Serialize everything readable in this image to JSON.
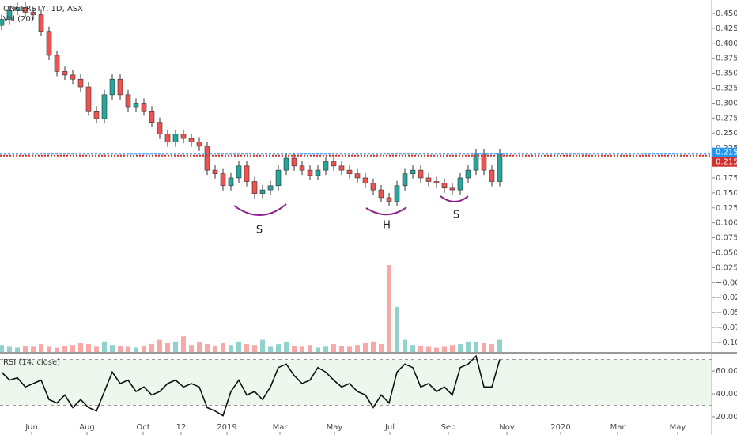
{
  "chart_data": [
    {
      "type": "candlestick",
      "title": "ONCERSTY, 1D, ASX",
      "volume_title": "Vol (20)",
      "up_color": "#26a69a",
      "down_color": "#ef5350",
      "open": [
        0.43,
        0.44,
        0.455,
        0.46,
        0.452,
        0.448,
        0.42,
        0.38,
        0.353,
        0.347,
        0.34,
        0.327,
        0.287,
        0.274,
        0.314,
        0.34,
        0.314,
        0.294,
        0.3,
        0.287,
        0.268,
        0.248,
        0.235,
        0.248,
        0.241,
        0.235,
        0.228,
        0.188,
        0.182,
        0.162,
        0.175,
        0.195,
        0.169,
        0.149,
        0.155,
        0.162,
        0.188,
        0.208,
        0.195,
        0.188,
        0.179,
        0.188,
        0.202,
        0.195,
        0.188,
        0.182,
        0.175,
        0.166,
        0.155,
        0.142,
        0.136,
        0.162,
        0.182,
        0.188,
        0.175,
        0.169,
        0.166,
        0.158,
        0.155,
        0.175,
        0.188,
        0.215,
        0.188,
        0.169
      ],
      "high": [
        0.448,
        0.463,
        0.468,
        0.468,
        0.46,
        0.456,
        0.428,
        0.388,
        0.361,
        0.355,
        0.348,
        0.335,
        0.295,
        0.322,
        0.348,
        0.348,
        0.322,
        0.308,
        0.308,
        0.295,
        0.276,
        0.256,
        0.256,
        0.256,
        0.249,
        0.243,
        0.236,
        0.196,
        0.19,
        0.183,
        0.203,
        0.203,
        0.177,
        0.163,
        0.17,
        0.196,
        0.216,
        0.216,
        0.203,
        0.196,
        0.196,
        0.21,
        0.21,
        0.203,
        0.196,
        0.19,
        0.183,
        0.174,
        0.163,
        0.15,
        0.17,
        0.19,
        0.196,
        0.196,
        0.183,
        0.177,
        0.174,
        0.166,
        0.183,
        0.196,
        0.223,
        0.223,
        0.196,
        0.223
      ],
      "low": [
        0.422,
        0.432,
        0.447,
        0.444,
        0.44,
        0.412,
        0.372,
        0.345,
        0.339,
        0.332,
        0.319,
        0.279,
        0.266,
        0.266,
        0.306,
        0.306,
        0.286,
        0.286,
        0.279,
        0.26,
        0.24,
        0.227,
        0.227,
        0.233,
        0.227,
        0.22,
        0.18,
        0.174,
        0.154,
        0.154,
        0.167,
        0.161,
        0.141,
        0.141,
        0.147,
        0.154,
        0.18,
        0.187,
        0.18,
        0.171,
        0.171,
        0.18,
        0.187,
        0.18,
        0.174,
        0.167,
        0.158,
        0.147,
        0.134,
        0.128,
        0.128,
        0.154,
        0.174,
        0.167,
        0.161,
        0.158,
        0.15,
        0.147,
        0.147,
        0.167,
        0.18,
        0.18,
        0.161,
        0.161
      ],
      "close": [
        0.44,
        0.455,
        0.46,
        0.452,
        0.448,
        0.42,
        0.38,
        0.353,
        0.347,
        0.34,
        0.327,
        0.287,
        0.274,
        0.314,
        0.34,
        0.314,
        0.294,
        0.3,
        0.287,
        0.268,
        0.248,
        0.235,
        0.248,
        0.241,
        0.235,
        0.228,
        0.188,
        0.182,
        0.162,
        0.175,
        0.195,
        0.169,
        0.149,
        0.155,
        0.162,
        0.188,
        0.208,
        0.195,
        0.188,
        0.179,
        0.188,
        0.202,
        0.195,
        0.188,
        0.182,
        0.175,
        0.166,
        0.155,
        0.142,
        0.136,
        0.162,
        0.182,
        0.188,
        0.175,
        0.169,
        0.166,
        0.158,
        0.155,
        0.175,
        0.188,
        0.215,
        0.188,
        0.169,
        0.215
      ],
      "volume": [
        8,
        6,
        5,
        7,
        6,
        9,
        6,
        5,
        7,
        8,
        10,
        9,
        6,
        12,
        8,
        7,
        6,
        5,
        7,
        9,
        14,
        10,
        12,
        18,
        8,
        11,
        9,
        7,
        10,
        8,
        12,
        9,
        8,
        14,
        6,
        9,
        11,
        7,
        6,
        8,
        5,
        6,
        9,
        7,
        6,
        8,
        10,
        12,
        9,
        100,
        52,
        14,
        8,
        7,
        6,
        5,
        6,
        8,
        9,
        12,
        11,
        10,
        9,
        14
      ],
      "volume_ylim": [
        0,
        100
      ],
      "xlim": [
        -0.2,
        89.8
      ],
      "xticks": [
        {
          "value": 3.8,
          "label": "Jun"
        },
        {
          "value": 10.8,
          "label": "Aug"
        },
        {
          "value": 17.9,
          "label": "Oct"
        },
        {
          "value": 22.7,
          "label": "12"
        },
        {
          "value": 28.5,
          "label": "2019"
        },
        {
          "value": 35.2,
          "label": "Mar"
        },
        {
          "value": 42.1,
          "label": "May"
        },
        {
          "value": 49.1,
          "label": "Jul"
        },
        {
          "value": 56.5,
          "label": "Sep"
        },
        {
          "value": 63.9,
          "label": "Nov"
        },
        {
          "value": 70.7,
          "label": "2020"
        },
        {
          "value": 77.9,
          "label": "Mar"
        },
        {
          "value": 85.5,
          "label": "May"
        }
      ],
      "ylim": [
        -0.116,
        0.4725
      ],
      "yticks": [
        {
          "value": 0.45,
          "label": "0.450"
        },
        {
          "value": 0.425,
          "label": "0.425"
        },
        {
          "value": 0.4,
          "label": "0.400"
        },
        {
          "value": 0.375,
          "label": "0.375"
        },
        {
          "value": 0.35,
          "label": "0.350"
        },
        {
          "value": 0.325,
          "label": "0.325"
        },
        {
          "value": 0.3,
          "label": "0.300"
        },
        {
          "value": 0.275,
          "label": "0.275"
        },
        {
          "value": 0.25,
          "label": "0.250"
        },
        {
          "value": 0.225,
          "label": "0.225"
        },
        {
          "value": 0.2,
          "label": "0.200"
        },
        {
          "value": 0.175,
          "label": "0.175"
        },
        {
          "value": 0.15,
          "label": "0.150"
        },
        {
          "value": 0.125,
          "label": "0.125"
        },
        {
          "value": 0.1,
          "label": "0.100"
        },
        {
          "value": 0.075,
          "label": "0.075"
        },
        {
          "value": 0.05,
          "label": "0.050"
        },
        {
          "value": 0.025,
          "label": "0.025"
        },
        {
          "value": 0,
          "label": "−0.000"
        },
        {
          "value": -0.025,
          "label": "−0.025"
        },
        {
          "value": -0.05,
          "label": "−0.050"
        },
        {
          "value": -0.075,
          "label": "−0.075"
        },
        {
          "value": -0.1,
          "label": "−0.100"
        }
      ],
      "price_lines": [
        {
          "value": 0.215,
          "color": "#2196f3"
        },
        {
          "value": 0.215,
          "color": "#d32f2f"
        }
      ],
      "annotations": [
        "S",
        "H",
        "S"
      ]
    },
    {
      "type": "line",
      "title": "RSI (14, close)",
      "color": "#111111",
      "band_color": "#e8f5e9",
      "values": [
        59,
        52,
        54,
        46,
        49,
        52,
        35,
        32,
        39,
        28,
        35,
        28,
        25,
        42,
        59,
        49,
        52,
        42,
        46,
        39,
        42,
        49,
        52,
        46,
        49,
        46,
        28,
        25,
        21,
        42,
        52,
        39,
        42,
        35,
        46,
        63,
        66,
        56,
        49,
        52,
        63,
        59,
        52,
        46,
        49,
        42,
        39,
        28,
        39,
        32,
        59,
        66,
        63,
        46,
        49,
        42,
        46,
        39,
        63,
        66,
        73,
        46,
        46,
        70
      ],
      "bands": [
        30,
        70
      ],
      "ylim": [
        4.1,
        75.2
      ],
      "yticks": [
        {
          "value": 60,
          "label": "60.00"
        },
        {
          "value": 40,
          "label": "40.00"
        },
        {
          "value": 20,
          "label": "20.00"
        }
      ]
    }
  ]
}
